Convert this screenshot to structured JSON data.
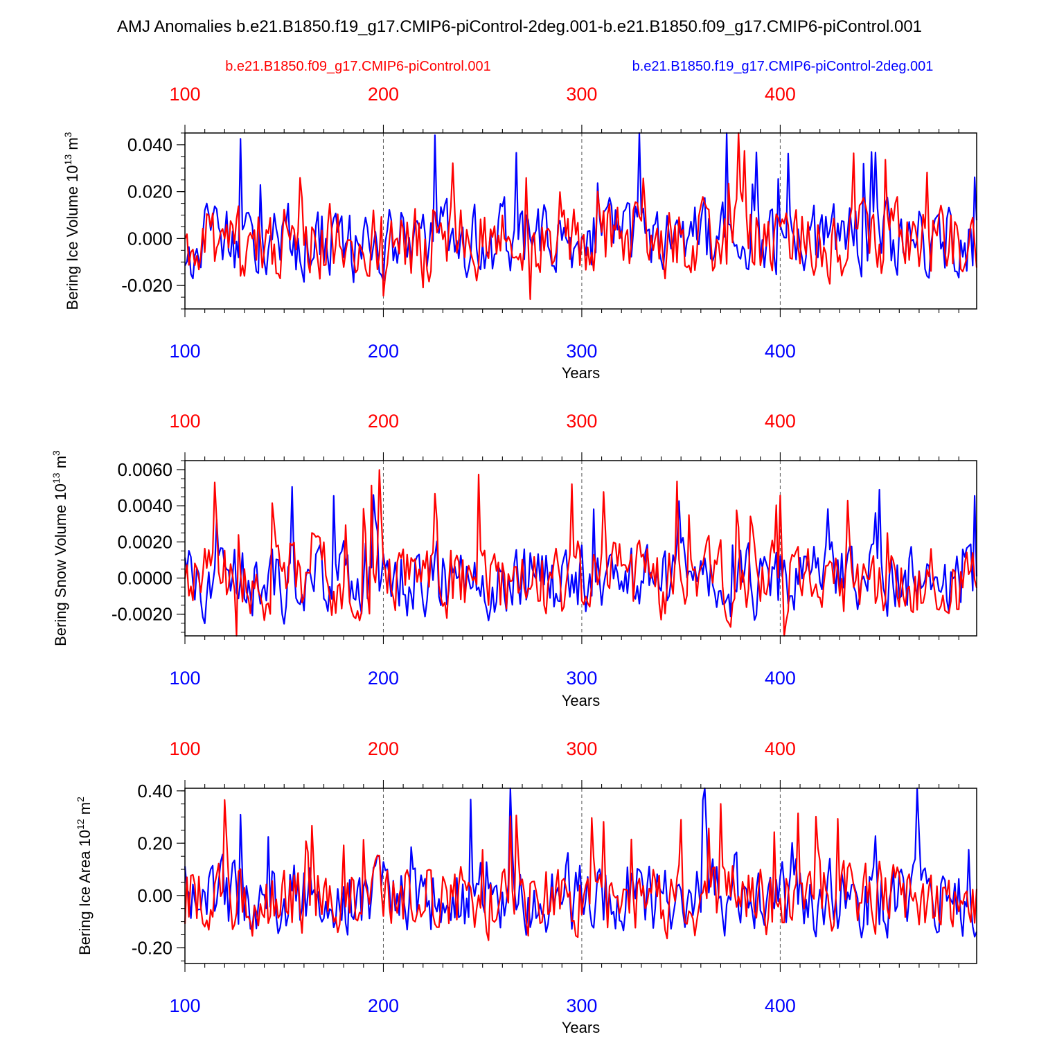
{
  "figure": {
    "title": "AMJ Anomalies b.e21.B1850.f19_g17.CMIP6-piControl-2deg.001-b.e21.B1850.f09_g17.CMIP6-piControl.001",
    "legend_red": "b.e21.B1850.f09_g17.CMIP6-piControl.001",
    "legend_blue": "b.e21.B1850.f19_g17.CMIP6-piControl-2deg.001",
    "red_color": "#ff0000",
    "blue_color": "#0000ff"
  },
  "chart_data": [
    {
      "type": "line",
      "ylabel_main": "Bering Ice Volume 10",
      "ylabel_exp": "13",
      "ylabel_unit": " m",
      "ylabel_unit_exp": "3",
      "xlabel": "Years",
      "xlim": [
        100,
        499
      ],
      "ylim": [
        -0.03,
        0.045
      ],
      "yticks": [
        -0.02,
        0.0,
        0.02,
        0.04
      ],
      "ytick_labels": [
        "-0.020",
        "0.000",
        "0.020",
        "0.040"
      ],
      "yminor_step": 0.005,
      "xticks": [
        100,
        200,
        300,
        400
      ],
      "xtick_labels": [
        "100",
        "200",
        "300",
        "400"
      ],
      "gen": {
        "amp": 0.0085,
        "spike": 0.038,
        "mean": -0.0005,
        "seed_red": 11,
        "seed_blue": 23
      },
      "series": [
        {
          "name": "b.e21.B1850.f09_g17.CMIP6-piControl.001",
          "color": "#ff0000",
          "values": []
        },
        {
          "name": "b.e21.B1850.f19_g17.CMIP6-piControl-2deg.001",
          "color": "#0000ff",
          "values": []
        }
      ]
    },
    {
      "type": "line",
      "ylabel_main": "Bering Snow Volume 10",
      "ylabel_exp": "13",
      "ylabel_unit": " m",
      "ylabel_unit_exp": "3",
      "xlabel": "Years",
      "xlim": [
        100,
        499
      ],
      "ylim": [
        -0.0032,
        0.0065
      ],
      "yticks": [
        -0.002,
        0.0,
        0.002,
        0.004,
        0.006
      ],
      "ytick_labels": [
        "-0.0020",
        "0.0000",
        "0.0020",
        "0.0040",
        "0.0060"
      ],
      "yminor_step": 0.0005,
      "xticks": [
        100,
        200,
        300,
        400
      ],
      "xtick_labels": [
        "100",
        "200",
        "300",
        "400"
      ],
      "gen": {
        "amp": 0.0011,
        "spike": 0.0055,
        "mean": -0.0001,
        "seed_red": 37,
        "seed_blue": 41
      },
      "series": [
        {
          "name": "b.e21.B1850.f09_g17.CMIP6-piControl.001",
          "color": "#ff0000",
          "values": []
        },
        {
          "name": "b.e21.B1850.f19_g17.CMIP6-piControl-2deg.001",
          "color": "#0000ff",
          "values": []
        }
      ]
    },
    {
      "type": "line",
      "ylabel_main": "Bering Ice Area 10",
      "ylabel_exp": "12",
      "ylabel_unit": " m",
      "ylabel_unit_exp": "2",
      "xlabel": "Years",
      "xlim": [
        100,
        499
      ],
      "ylim": [
        -0.26,
        0.41
      ],
      "yticks": [
        -0.2,
        0.0,
        0.2,
        0.4
      ],
      "ytick_labels": [
        "-0.20",
        "0.00",
        "0.20",
        "0.40"
      ],
      "yminor_step": 0.05,
      "xticks": [
        100,
        200,
        300,
        400
      ],
      "xtick_labels": [
        "100",
        "200",
        "300",
        "400"
      ],
      "gen": {
        "amp": 0.075,
        "spike": 0.35,
        "mean": -0.004,
        "seed_red": 53,
        "seed_blue": 67
      },
      "series": [
        {
          "name": "b.e21.B1850.f09_g17.CMIP6-piControl.001",
          "color": "#ff0000",
          "values": []
        },
        {
          "name": "b.e21.B1850.f19_g17.CMIP6-piControl-2deg.001",
          "color": "#0000ff",
          "values": []
        }
      ]
    }
  ]
}
